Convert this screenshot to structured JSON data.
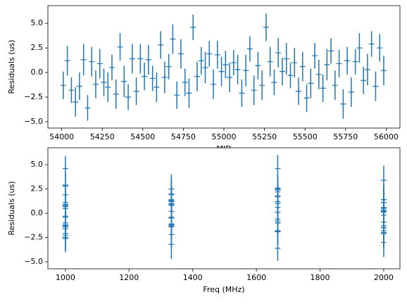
{
  "chart_data": [
    {
      "type": "errorbar",
      "x_label": "MJD",
      "y_label": "Residuals (us)",
      "color": "#1f77b4",
      "x": [
        54010,
        54035,
        54060,
        54085,
        54110,
        54135,
        54160,
        54185,
        54210,
        54235,
        54260,
        54285,
        54310,
        54335,
        54360,
        54385,
        54410,
        54435,
        54460,
        54485,
        54510,
        54535,
        54560,
        54585,
        54610,
        54635,
        54660,
        54685,
        54710,
        54735,
        54760,
        54785,
        54810,
        54835,
        54860,
        54885,
        54910,
        54935,
        54960,
        54985,
        55010,
        55035,
        55060,
        55085,
        55110,
        55135,
        55160,
        55185,
        55210,
        55235,
        55260,
        55285,
        55310,
        55335,
        55360,
        55385,
        55410,
        55435,
        55460,
        55485,
        55510,
        55535,
        55560,
        55585,
        55610,
        55635,
        55660,
        55685,
        55710,
        55735,
        55760,
        55785,
        55810,
        55835,
        55860,
        55885,
        55910,
        55935,
        55960,
        55985
      ],
      "values": [
        -1.3,
        1.2,
        -1.8,
        -3.0,
        -1.4,
        1.3,
        -3.6,
        1.1,
        -1.2,
        0.9,
        -1.0,
        -1.5,
        0.5,
        -2.2,
        2.6,
        -0.9,
        -2.5,
        1.4,
        -1.9,
        1.4,
        -0.4,
        1.3,
        -0.6,
        -1.5,
        2.8,
        -0.5,
        0.6,
        3.4,
        -2.3,
        1.9,
        -1.0,
        -2.1,
        4.6,
        -0.4,
        1.2,
        0.5,
        1.9,
        -1.2,
        1.8,
        0.1,
        0.8,
        -0.5,
        1.0,
        0.3,
        -2.1,
        0.2,
        2.4,
        -1.8,
        0.7,
        -1.3,
        4.6,
        1.1,
        -1.0,
        2.0,
        0.1,
        1.4,
        -0.3,
        1.0,
        -1.9,
        0.6,
        -2.6,
        -1.1,
        1.7,
        -0.2,
        -1.6,
        0.8,
        2.2,
        -1.3,
        0.9,
        -3.2,
        1.2,
        -2.0,
        1.1,
        2.5,
        -0.8,
        0.3,
        2.9,
        -1.4,
        2.5,
        0.2
      ],
      "errors": [
        1.4,
        1.5,
        1.3,
        1.5,
        1.4,
        1.6,
        1.3,
        1.5,
        1.4,
        1.5,
        1.4,
        1.5,
        1.3,
        1.5,
        1.4,
        1.6,
        1.3,
        1.5,
        1.4,
        1.5,
        1.4,
        1.5,
        1.3,
        1.5,
        1.4,
        1.6,
        1.3,
        1.5,
        1.4,
        1.5,
        1.4,
        1.5,
        1.3,
        1.5,
        1.4,
        1.6,
        1.3,
        1.5,
        1.4,
        1.5,
        1.4,
        1.5,
        1.3,
        1.5,
        1.4,
        1.6,
        1.3,
        1.5,
        1.4,
        1.5,
        1.4,
        1.5,
        1.3,
        1.5,
        1.4,
        1.6,
        1.3,
        1.5,
        1.4,
        1.5,
        1.4,
        1.5,
        1.3,
        1.5,
        1.4,
        1.6,
        1.3,
        1.5,
        1.4,
        1.5,
        1.4,
        1.5,
        1.3,
        1.5,
        1.4,
        1.6,
        1.3,
        1.5,
        1.4,
        1.5
      ],
      "xlim": [
        53915,
        56085
      ],
      "ylim": [
        -5.65,
        6.8
      ],
      "xticks": [
        54000,
        54250,
        54500,
        54750,
        55000,
        55250,
        55500,
        55750,
        56000
      ],
      "yticks": [
        {
          "value": -5,
          "label": "−5.0"
        },
        {
          "value": -2.5,
          "label": "−2.5"
        },
        {
          "value": 0,
          "label": "0.0"
        },
        {
          "value": 2.5,
          "label": "2.5"
        },
        {
          "value": 5,
          "label": "5.0"
        }
      ]
    },
    {
      "type": "errorbar",
      "x_label": "Freq (MHz)",
      "y_label": "Residuals (us)",
      "color": "#1f77b4",
      "x": [
        1000,
        1333,
        1667,
        2000,
        1000,
        1333,
        1667,
        2000,
        1000,
        1333,
        1667,
        2000,
        1000,
        1333,
        1667,
        2000,
        1000,
        1333,
        1667,
        2000,
        1000,
        1333,
        1667,
        2000,
        1000,
        1333,
        1667,
        2000,
        1000,
        1333,
        1667,
        2000,
        1000,
        1333,
        1667,
        2000,
        1000,
        1333,
        1667,
        2000,
        1000,
        1333,
        1667,
        2000,
        1000,
        1333,
        1667,
        2000,
        1000,
        1333,
        1667,
        2000,
        1000,
        1333,
        1667,
        2000,
        1000,
        1333,
        1667,
        2000,
        1000,
        1333,
        1667,
        2000,
        1000,
        1333,
        1667,
        2000,
        1000,
        1333,
        1667,
        2000,
        1000,
        1333,
        1667,
        2000,
        1000,
        1333,
        1667,
        2000
      ],
      "values": [
        -1.3,
        1.2,
        -1.8,
        -3.0,
        -1.4,
        1.3,
        -3.6,
        1.1,
        -1.2,
        0.9,
        -1.0,
        -1.5,
        0.5,
        -2.2,
        2.6,
        -0.9,
        -2.5,
        1.4,
        -1.9,
        1.4,
        -0.4,
        1.3,
        -0.6,
        -1.5,
        2.8,
        -0.5,
        0.6,
        3.4,
        -2.3,
        1.9,
        -1.0,
        -2.1,
        4.6,
        -0.4,
        1.2,
        0.5,
        1.9,
        -1.2,
        1.8,
        0.1,
        0.8,
        -0.5,
        1.0,
        0.3,
        -2.1,
        0.2,
        2.4,
        -1.8,
        0.7,
        -1.3,
        4.6,
        1.1,
        -1.0,
        2.0,
        0.1,
        1.4,
        -0.3,
        1.0,
        -1.9,
        0.6,
        -2.6,
        -1.1,
        1.7,
        -0.2,
        -1.6,
        0.8,
        2.2,
        -1.3,
        0.9,
        -3.2,
        1.2,
        -2.0,
        1.1,
        2.5,
        -0.8,
        0.3,
        2.9,
        -1.4,
        2.5,
        0.2
      ],
      "errors": [
        1.4,
        1.5,
        1.3,
        1.5,
        1.4,
        1.6,
        1.3,
        1.5,
        1.4,
        1.5,
        1.4,
        1.5,
        1.3,
        1.5,
        1.4,
        1.6,
        1.3,
        1.5,
        1.4,
        1.5,
        1.4,
        1.5,
        1.3,
        1.5,
        1.4,
        1.6,
        1.3,
        1.5,
        1.4,
        1.5,
        1.4,
        1.5,
        1.3,
        1.5,
        1.4,
        1.6,
        1.3,
        1.5,
        1.4,
        1.5,
        1.4,
        1.5,
        1.3,
        1.5,
        1.4,
        1.6,
        1.3,
        1.5,
        1.4,
        1.5,
        1.4,
        1.5,
        1.3,
        1.5,
        1.4,
        1.6,
        1.3,
        1.5,
        1.4,
        1.5,
        1.4,
        1.5,
        1.3,
        1.5,
        1.4,
        1.6,
        1.3,
        1.5,
        1.4,
        1.5,
        1.4,
        1.5,
        1.3,
        1.5,
        1.4,
        1.6,
        1.3,
        1.5,
        1.4,
        1.5
      ],
      "xlim": [
        945,
        2051
      ],
      "ylim": [
        -5.72,
        6.74
      ],
      "xticks": [
        1000,
        1200,
        1400,
        1600,
        1800,
        2000
      ],
      "yticks": [
        {
          "value": -5,
          "label": "−5.0"
        },
        {
          "value": -2.5,
          "label": "−2.5"
        },
        {
          "value": 0,
          "label": "0.0"
        },
        {
          "value": 2.5,
          "label": "2.5"
        },
        {
          "value": 5,
          "label": "5.0"
        }
      ]
    }
  ]
}
